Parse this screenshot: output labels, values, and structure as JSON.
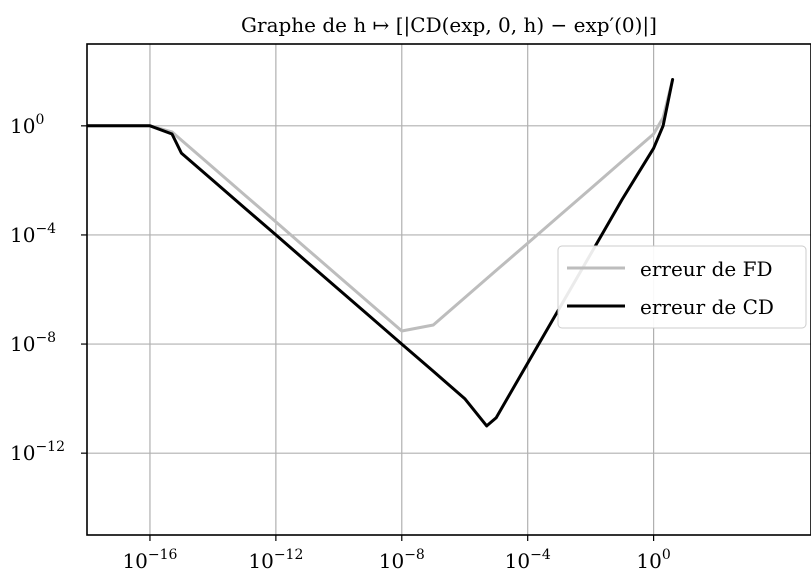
{
  "chart_data": {
    "type": "line",
    "title": "Graphe de h ↦ [|CD(exp, 0, h) − exp′(0)|]",
    "xlabel": "",
    "ylabel": "",
    "xscale": "log",
    "yscale": "log",
    "xlim": [
      1e-18,
      100000.0
    ],
    "ylim": [
      1e-15,
      1000.0
    ],
    "xticks": [
      {
        "value": 1e-16,
        "base": "10",
        "exp": "−16"
      },
      {
        "value": 1e-12,
        "base": "10",
        "exp": "−12"
      },
      {
        "value": 1e-08,
        "base": "10",
        "exp": "−8"
      },
      {
        "value": 0.0001,
        "base": "10",
        "exp": "−4"
      },
      {
        "value": 1,
        "base": "10",
        "exp": "0"
      }
    ],
    "yticks": [
      {
        "value": 1,
        "base": "10",
        "exp": "0"
      },
      {
        "value": 0.0001,
        "base": "10",
        "exp": "−4"
      },
      {
        "value": 1e-08,
        "base": "10",
        "exp": "−8"
      },
      {
        "value": 1e-12,
        "base": "10",
        "exp": "−12"
      }
    ],
    "grid": true,
    "legend": "center-right",
    "series": [
      {
        "name": "erreur de FD",
        "color": "#bdbdbd",
        "x": [
          1e-18,
          1e-16,
          5e-16,
          1e-15,
          1e-14,
          1e-13,
          1e-12,
          1e-11,
          1e-10,
          1e-09,
          1e-08,
          1e-07,
          1e-06,
          1e-05,
          0.0001,
          0.001,
          0.01,
          0.1,
          1,
          2,
          4
        ],
        "y": [
          1,
          1,
          0.6,
          0.3,
          0.03,
          0.003,
          0.0003,
          3e-05,
          3e-06,
          3e-07,
          3e-08,
          5e-08,
          5e-07,
          5e-06,
          5e-05,
          0.0005,
          0.005,
          0.05,
          0.5,
          2,
          50
        ]
      },
      {
        "name": "erreur de CD",
        "color": "#000000",
        "x": [
          1e-18,
          1e-16,
          5e-16,
          1e-15,
          1e-14,
          1e-13,
          1e-12,
          1e-11,
          1e-10,
          1e-09,
          1e-08,
          1e-07,
          1e-06,
          5e-06,
          1e-05,
          0.0001,
          0.001,
          0.01,
          0.1,
          1,
          2,
          4
        ],
        "y": [
          1,
          1,
          0.5,
          0.1,
          0.01,
          0.001,
          0.0001,
          1e-05,
          1e-06,
          1e-07,
          1e-08,
          1e-09,
          1e-10,
          1e-11,
          2e-11,
          2e-09,
          2e-07,
          2e-05,
          0.002,
          0.15,
          1,
          50
        ]
      }
    ]
  }
}
